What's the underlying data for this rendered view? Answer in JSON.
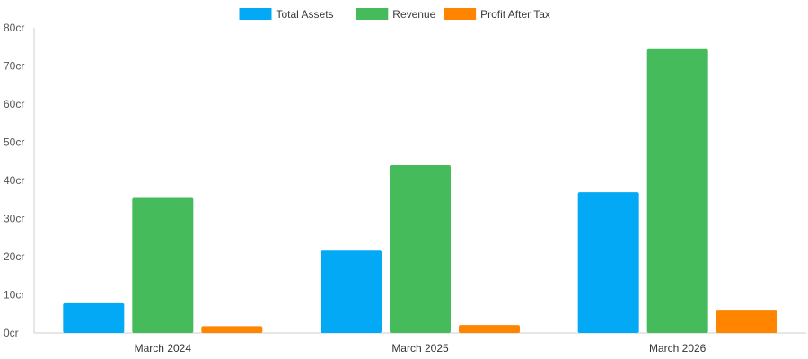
{
  "chart_data": {
    "type": "bar",
    "categories": [
      "March 2024",
      "March 2025",
      "March 2026"
    ],
    "series": [
      {
        "name": "Total Assets",
        "color": "#03a9f4",
        "values": [
          7.8,
          21.6,
          36.9
        ]
      },
      {
        "name": "Revenue",
        "color": "#46bb5c",
        "values": [
          35.4,
          44.0,
          74.4
        ]
      },
      {
        "name": "Profit After Tax",
        "color": "#ff8400",
        "values": [
          1.8,
          2.1,
          6.1
        ]
      }
    ],
    "ylim": [
      0,
      80
    ],
    "yticks": [
      0,
      10,
      20,
      30,
      40,
      50,
      60,
      70,
      80
    ],
    "ytick_suffix": "cr",
    "legend_position": "top-center",
    "grid": false
  }
}
